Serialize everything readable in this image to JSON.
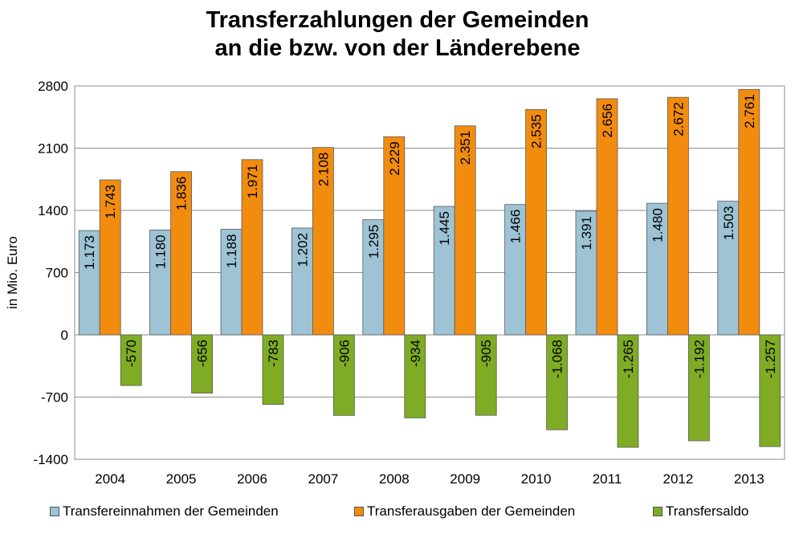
{
  "chart_data": {
    "type": "bar",
    "title_lines": [
      "Transferzahlungen der Gemeinden",
      "an die bzw. von der Länderebene"
    ],
    "ylabel": "in Mio. Euro",
    "xlabel": "",
    "ylim": [
      -1400,
      2800
    ],
    "yticks": [
      2800,
      2100,
      1400,
      700,
      0,
      -700,
      -1400
    ],
    "grid": true,
    "legend_position": "bottom",
    "categories": [
      "2004",
      "2005",
      "2006",
      "2007",
      "2008",
      "2009",
      "2010",
      "2011",
      "2012",
      "2013"
    ],
    "series": [
      {
        "name": "Transfereinnahmen der Gemeinden",
        "color": "#9dc3d5",
        "values": [
          1173,
          1180,
          1188,
          1202,
          1295,
          1445,
          1466,
          1391,
          1480,
          1503
        ],
        "labels": [
          "1.173",
          "1.180",
          "1.188",
          "1.202",
          "1.295",
          "1.445",
          "1.466",
          "1.391",
          "1.480",
          "1.503"
        ]
      },
      {
        "name": "Transferausgaben der Gemeinden",
        "color": "#f28c0f",
        "values": [
          1743,
          1836,
          1971,
          2108,
          2229,
          2351,
          2535,
          2656,
          2672,
          2761
        ],
        "labels": [
          "1.743",
          "1.836",
          "1.971",
          "2.108",
          "2.229",
          "2.351",
          "2.535",
          "2.656",
          "2.672",
          "2.761"
        ]
      },
      {
        "name": "Transfersaldo",
        "color": "#7fac24",
        "values": [
          -570,
          -656,
          -783,
          -906,
          -934,
          -905,
          -1068,
          -1265,
          -1192,
          -1257
        ],
        "labels": [
          "-570",
          "-656",
          "-783",
          "-906",
          "-934",
          "-905",
          "-1.068",
          "-1.265",
          "-1.192",
          "-1.257"
        ]
      }
    ]
  }
}
